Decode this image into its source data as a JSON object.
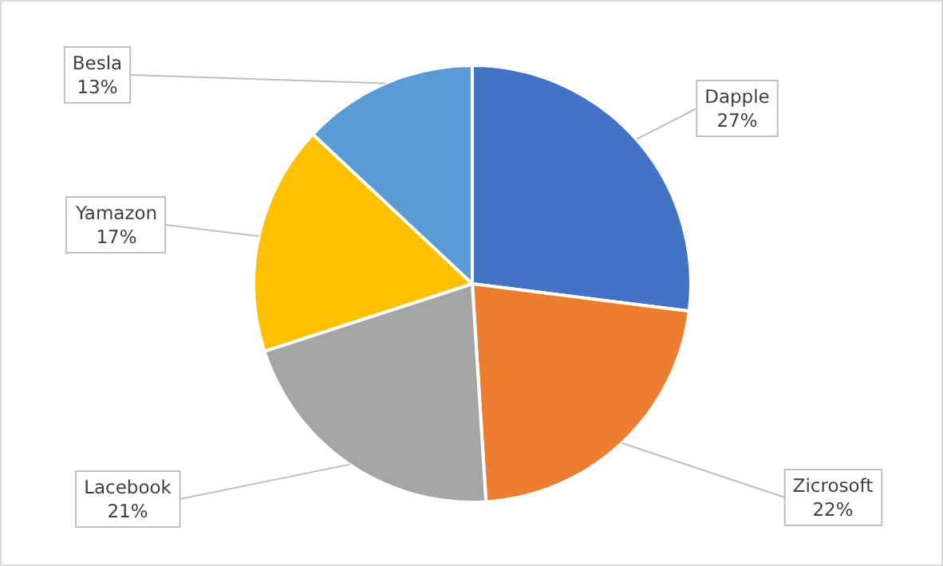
{
  "chart_data": {
    "type": "pie",
    "categories": [
      "Dapple",
      "Zicrosoft",
      "Lacebook",
      "Yamazon",
      "Besla"
    ],
    "values": [
      27,
      22,
      21,
      17,
      13
    ],
    "colors": [
      "#4472c4",
      "#ed7d31",
      "#a5a5a5",
      "#ffc000",
      "#5b9bd5"
    ],
    "value_labels": [
      "27%",
      "22%",
      "21%",
      "17%",
      "13%"
    ]
  }
}
